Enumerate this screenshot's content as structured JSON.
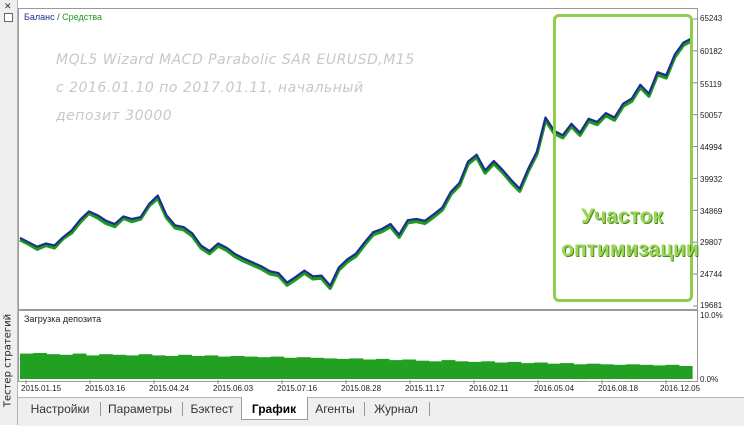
{
  "sidebar": {
    "label": "Тестер стратегий",
    "close_icon": "close-icon"
  },
  "legend": {
    "balance": "Баланс",
    "separator": " / ",
    "equity": "Средства"
  },
  "annotation": {
    "line1": "MQL5 Wizard MACD Parabolic SAR EURUSD,M15",
    "line2": "с 2016.01.10 по 2017.01.11, начальный",
    "line3": "депозит 30000"
  },
  "callout": {
    "line1": "Участок",
    "line2": "оптимизации"
  },
  "deposit_panel": {
    "label": "Загрузка депозита"
  },
  "colors": {
    "balance": "#1c2e8f",
    "equity": "#1e9b1e",
    "deposit_bar": "#22a022",
    "callout": "#8fcf4d",
    "watermark": "#c8c8c8"
  },
  "tabs": [
    {
      "label": "Настройки",
      "active": false
    },
    {
      "label": "Параметры",
      "active": false
    },
    {
      "label": "Бэктест",
      "active": false
    },
    {
      "label": "График",
      "active": true
    },
    {
      "label": "Агенты",
      "active": false
    },
    {
      "label": "Журнал",
      "active": false
    }
  ],
  "chart_data": [
    {
      "type": "line",
      "title": "",
      "xlabel": "",
      "ylabel": "",
      "ylim": [
        19681,
        65243
      ],
      "yticks": [
        "65243",
        "60182",
        "55119",
        "50057",
        "44994",
        "39932",
        "34869",
        "29807",
        "24744",
        "19681"
      ],
      "xticks": [
        "2015.01.15",
        "2015.03.16",
        "2015.04.24",
        "2015.06.03",
        "2015.07.16",
        "2015.08.28",
        "2015.11.17",
        "2016.02.11",
        "2016.05.04",
        "2016.08.18",
        "2016.12.05"
      ],
      "series": [
        {
          "name": "Баланс",
          "values": [
            30500,
            29800,
            29100,
            29600,
            29300,
            30600,
            31700,
            33400,
            34700,
            34100,
            33200,
            32700,
            33900,
            33500,
            33800,
            35900,
            37200,
            34100,
            32500,
            32200,
            31200,
            29300,
            28400,
            29600,
            28900,
            27900,
            27200,
            26600,
            26000,
            25200,
            24900,
            23400,
            24300,
            25300,
            24400,
            24500,
            22900,
            25800,
            27100,
            28000,
            29800,
            31400,
            31900,
            32700,
            31000,
            33300,
            33500,
            33200,
            34200,
            35300,
            37800,
            39200,
            42600,
            43700,
            41200,
            42700,
            41300,
            39700,
            38300,
            41500,
            44200,
            49600,
            47500,
            46800,
            48600,
            47200,
            49400,
            48900,
            50300,
            49600,
            51800,
            52600,
            54800,
            53400,
            56800,
            56300,
            59600,
            61500,
            62200
          ]
        },
        {
          "name": "Средства",
          "values": [
            30200,
            29500,
            28700,
            29300,
            28900,
            30400,
            31300,
            33000,
            34400,
            33700,
            32800,
            32300,
            33600,
            33100,
            33500,
            35600,
            36800,
            33700,
            32100,
            31800,
            30800,
            28900,
            28000,
            29200,
            28500,
            27500,
            26800,
            26200,
            25600,
            24800,
            24500,
            23000,
            23900,
            24900,
            24000,
            24100,
            22500,
            25400,
            26700,
            27600,
            29400,
            31000,
            31500,
            32300,
            30600,
            32900,
            33100,
            32800,
            33800,
            34900,
            37400,
            38800,
            42200,
            43300,
            40800,
            42300,
            40900,
            39300,
            37900,
            41100,
            43800,
            49200,
            47100,
            46400,
            48200,
            46800,
            49000,
            48500,
            49900,
            49200,
            51400,
            52200,
            54400,
            53000,
            56400,
            55900,
            59200,
            61100,
            61800
          ]
        }
      ]
    },
    {
      "type": "area",
      "title": "Загрузка депозита",
      "ylim": [
        0,
        10.0
      ],
      "yticks": [
        "10.0%",
        "0.0%"
      ],
      "values": [
        4.3,
        4.4,
        4.2,
        4.1,
        4.3,
        4.0,
        4.2,
        4.1,
        4.0,
        4.2,
        4.0,
        3.9,
        4.1,
        3.9,
        4.0,
        3.8,
        3.9,
        3.8,
        3.7,
        3.8,
        3.6,
        3.7,
        3.6,
        3.5,
        3.4,
        3.5,
        3.3,
        3.4,
        3.2,
        3.3,
        3.1,
        3.0,
        3.2,
        3.0,
        2.9,
        3.0,
        2.8,
        2.9,
        2.7,
        2.8,
        2.6,
        2.7,
        2.5,
        2.6,
        2.5,
        2.4,
        2.5,
        2.4,
        2.3,
        2.4,
        2.2
      ]
    }
  ]
}
